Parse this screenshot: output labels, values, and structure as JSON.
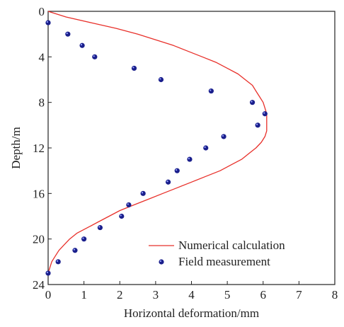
{
  "chart_data": {
    "type": "scatter",
    "title": "",
    "xlabel": "Horizontal deformation/mm",
    "ylabel": "Depth/m",
    "xlim": [
      0,
      8
    ],
    "ylim": [
      24,
      0
    ],
    "y_inverted": true,
    "x_ticks": [
      "0",
      "1",
      "2",
      "3",
      "4",
      "5",
      "6",
      "7",
      "8"
    ],
    "y_ticks": [
      "0",
      "4",
      "8",
      "12",
      "16",
      "20",
      "24"
    ],
    "grid": false,
    "legend_placement": "bottom-right",
    "series": [
      {
        "name": "Numerical calculation",
        "style": "line",
        "color": "#e8302a",
        "points": [
          [
            0.0,
            0.0
          ],
          [
            0.5,
            0.5
          ],
          [
            1.2,
            1.0
          ],
          [
            1.9,
            1.5
          ],
          [
            2.5,
            2.0
          ],
          [
            3.0,
            2.5
          ],
          [
            3.5,
            3.0
          ],
          [
            3.9,
            3.5
          ],
          [
            4.3,
            4.0
          ],
          [
            4.7,
            4.5
          ],
          [
            5.0,
            5.0
          ],
          [
            5.3,
            5.5
          ],
          [
            5.5,
            6.0
          ],
          [
            5.7,
            6.5
          ],
          [
            5.8,
            7.0
          ],
          [
            5.9,
            7.5
          ],
          [
            6.0,
            8.0
          ],
          [
            6.05,
            8.5
          ],
          [
            6.1,
            9.0
          ],
          [
            6.1,
            9.5
          ],
          [
            6.1,
            10.0
          ],
          [
            6.1,
            10.5
          ],
          [
            6.05,
            11.0
          ],
          [
            5.95,
            11.5
          ],
          [
            5.8,
            12.0
          ],
          [
            5.6,
            12.5
          ],
          [
            5.4,
            13.0
          ],
          [
            5.1,
            13.5
          ],
          [
            4.8,
            14.0
          ],
          [
            4.4,
            14.5
          ],
          [
            4.0,
            15.0
          ],
          [
            3.6,
            15.5
          ],
          [
            3.2,
            16.0
          ],
          [
            2.8,
            16.5
          ],
          [
            2.4,
            17.0
          ],
          [
            2.0,
            17.5
          ],
          [
            1.7,
            18.0
          ],
          [
            1.4,
            18.5
          ],
          [
            1.1,
            19.0
          ],
          [
            0.8,
            19.5
          ],
          [
            0.6,
            20.0
          ],
          [
            0.45,
            20.5
          ],
          [
            0.3,
            21.0
          ],
          [
            0.2,
            21.5
          ],
          [
            0.1,
            22.0
          ],
          [
            0.05,
            22.5
          ],
          [
            0.0,
            23.0
          ]
        ]
      },
      {
        "name": "Field measurement",
        "style": "marker",
        "color": "#1a1f8c",
        "points": [
          [
            0.0,
            1.0
          ],
          [
            0.55,
            2.0
          ],
          [
            0.95,
            3.0
          ],
          [
            1.3,
            4.0
          ],
          [
            2.4,
            5.0
          ],
          [
            3.15,
            6.0
          ],
          [
            4.55,
            7.0
          ],
          [
            5.7,
            8.0
          ],
          [
            6.05,
            9.0
          ],
          [
            5.85,
            10.0
          ],
          [
            4.9,
            11.0
          ],
          [
            4.4,
            12.0
          ],
          [
            3.95,
            13.0
          ],
          [
            3.6,
            14.0
          ],
          [
            3.35,
            15.0
          ],
          [
            2.65,
            16.0
          ],
          [
            2.25,
            17.0
          ],
          [
            2.05,
            18.0
          ],
          [
            1.45,
            19.0
          ],
          [
            1.0,
            20.0
          ],
          [
            0.75,
            21.0
          ],
          [
            0.28,
            22.0
          ],
          [
            0.0,
            23.0
          ]
        ]
      }
    ]
  }
}
